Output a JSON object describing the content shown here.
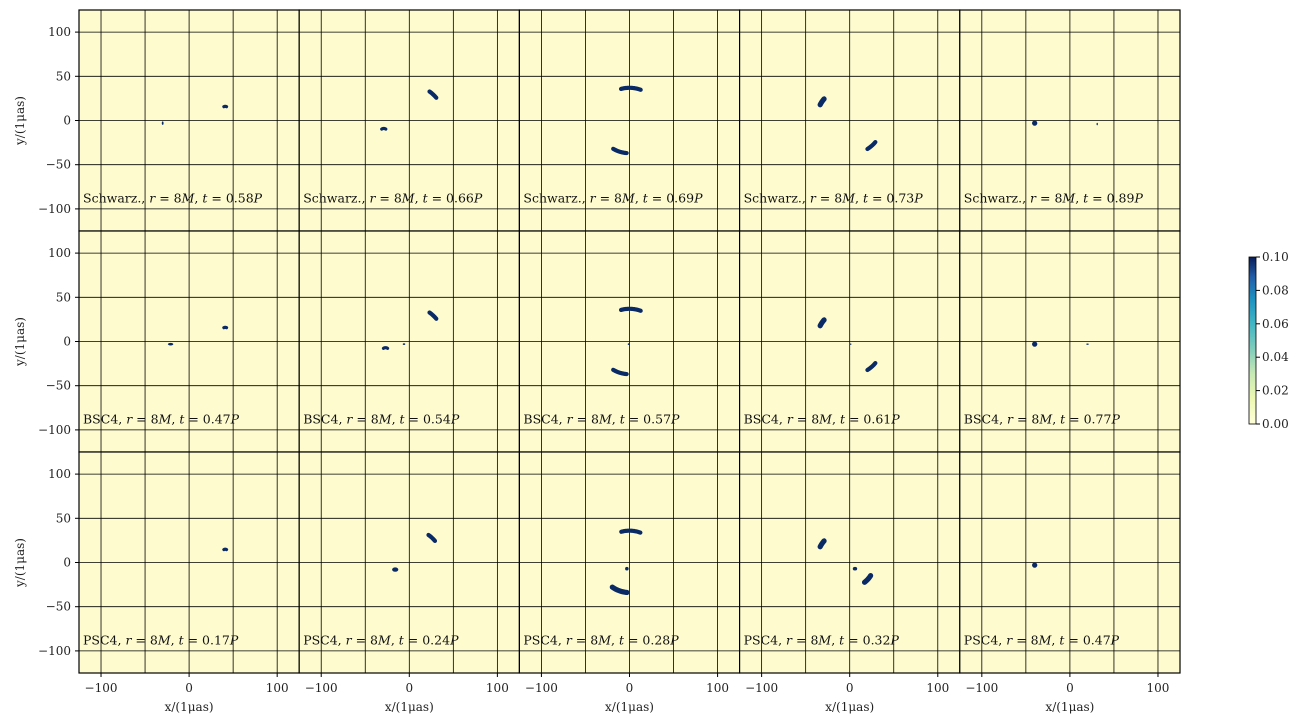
{
  "chart_data": {
    "type": "heatmap",
    "layout": {
      "rows": 3,
      "cols": 5
    },
    "xlabel": "x/(1μas)",
    "ylabel": "y/(1μas)",
    "xlim": [
      -125,
      125
    ],
    "ylim": [
      -125,
      125
    ],
    "xticks": [
      -100,
      0,
      100
    ],
    "yticks": [
      100,
      50,
      0,
      -50,
      -100
    ],
    "grid": true,
    "colormap": "YlGnBu",
    "background_color": "#fefccf",
    "spot_color": "#0a2a66",
    "colorbar": {
      "min": 0.0,
      "max": 0.1,
      "ticks": [
        "0.10",
        "0.08",
        "0.06",
        "0.04",
        "0.02",
        "0.00"
      ]
    },
    "panels": [
      {
        "row": 0,
        "col": 0,
        "model": "Schwarz.,",
        "r": "8M",
        "t": "0.58P",
        "features": [
          {
            "kind": "dot",
            "x": -30,
            "y": -3,
            "rx": 1,
            "ry": 2
          },
          {
            "kind": "arc",
            "cx": 41,
            "cy": 13,
            "R": 3,
            "a0": 60,
            "a1": 120,
            "w": 2
          }
        ]
      },
      {
        "row": 0,
        "col": 1,
        "model": "Schwarz.,",
        "r": "8M",
        "t": "0.66P",
        "features": [
          {
            "kind": "arc",
            "cx": -29,
            "cy": -13,
            "R": 4,
            "a0": 55,
            "a1": 125,
            "w": 2
          },
          {
            "kind": "arc",
            "cx": 0,
            "cy": 0,
            "R": 40,
            "a0": 40,
            "a1": 55,
            "w": 3
          }
        ]
      },
      {
        "row": 0,
        "col": 2,
        "model": "Schwarz.,",
        "r": "8M",
        "t": "0.69P",
        "features": [
          {
            "kind": "arc",
            "cx": 0,
            "cy": 0,
            "R": 37,
            "a0": 70,
            "a1": 105,
            "w": 3
          },
          {
            "kind": "arc",
            "cx": 0,
            "cy": 0,
            "R": 37,
            "a0": 240,
            "a1": 265,
            "w": 3
          }
        ]
      },
      {
        "row": 0,
        "col": 3,
        "model": "Schwarz.,",
        "r": "8M",
        "t": "0.73P",
        "features": [
          {
            "kind": "arc",
            "cx": 0,
            "cy": 0,
            "R": 38,
            "a0": 140,
            "a1": 152,
            "w": 4
          },
          {
            "kind": "arc",
            "cx": 0,
            "cy": 0,
            "R": 38,
            "a0": 302,
            "a1": 320,
            "w": 3
          }
        ]
      },
      {
        "row": 0,
        "col": 4,
        "model": "Schwarz.,",
        "r": "8M",
        "t": "0.89P",
        "features": [
          {
            "kind": "dot",
            "x": -40,
            "y": -3,
            "rx": 3,
            "ry": 3
          },
          {
            "kind": "dot",
            "x": 31,
            "y": -4,
            "rx": 0.8,
            "ry": 1.5
          }
        ]
      },
      {
        "row": 1,
        "col": 0,
        "model": "BSC4,",
        "r": "8M",
        "t": "0.47P",
        "features": [
          {
            "kind": "dot",
            "x": -21,
            "y": -3,
            "rx": 3,
            "ry": 1.5
          },
          {
            "kind": "arc",
            "cx": 41,
            "cy": 13,
            "R": 3,
            "a0": 60,
            "a1": 120,
            "w": 2
          }
        ]
      },
      {
        "row": 1,
        "col": 1,
        "model": "BSC4,",
        "r": "8M",
        "t": "0.54P",
        "features": [
          {
            "kind": "arc",
            "cx": -27,
            "cy": -11,
            "R": 4,
            "a0": 55,
            "a1": 125,
            "w": 2
          },
          {
            "kind": "dot",
            "x": -6,
            "y": -3,
            "rx": 1.5,
            "ry": 1
          },
          {
            "kind": "arc",
            "cx": 0,
            "cy": 0,
            "R": 40,
            "a0": 40,
            "a1": 55,
            "w": 3
          }
        ]
      },
      {
        "row": 1,
        "col": 2,
        "model": "BSC4,",
        "r": "8M",
        "t": "0.57P",
        "features": [
          {
            "kind": "arc",
            "cx": 0,
            "cy": 0,
            "R": 37,
            "a0": 70,
            "a1": 105,
            "w": 3
          },
          {
            "kind": "arc",
            "cx": 0,
            "cy": 0,
            "R": 37,
            "a0": 240,
            "a1": 265,
            "w": 3
          },
          {
            "kind": "dot",
            "x": -1,
            "y": -3,
            "rx": 1,
            "ry": 1
          }
        ]
      },
      {
        "row": 1,
        "col": 3,
        "model": "BSC4,",
        "r": "8M",
        "t": "0.61P",
        "features": [
          {
            "kind": "arc",
            "cx": 0,
            "cy": 0,
            "R": 38,
            "a0": 140,
            "a1": 152,
            "w": 4
          },
          {
            "kind": "arc",
            "cx": 0,
            "cy": 0,
            "R": 38,
            "a0": 302,
            "a1": 320,
            "w": 3
          },
          {
            "kind": "dot",
            "x": 1,
            "y": -3,
            "rx": 1,
            "ry": 0.8
          }
        ]
      },
      {
        "row": 1,
        "col": 4,
        "model": "BSC4,",
        "r": "8M",
        "t": "0.77P",
        "features": [
          {
            "kind": "dot",
            "x": -40,
            "y": -3,
            "rx": 3,
            "ry": 3
          },
          {
            "kind": "dot",
            "x": 20,
            "y": -3,
            "rx": 1.5,
            "ry": 0.8
          }
        ]
      },
      {
        "row": 2,
        "col": 0,
        "model": "PSC4,",
        "r": "8M",
        "t": "0.17P",
        "features": [
          {
            "kind": "arc",
            "cx": 41,
            "cy": 12,
            "R": 3,
            "a0": 60,
            "a1": 120,
            "w": 2
          }
        ]
      },
      {
        "row": 2,
        "col": 1,
        "model": "PSC4,",
        "r": "8M",
        "t": "0.24P",
        "features": [
          {
            "kind": "dot",
            "x": -16,
            "y": -8,
            "rx": 3.5,
            "ry": 2.5
          },
          {
            "kind": "arc",
            "cx": 0,
            "cy": 0,
            "R": 38,
            "a0": 40,
            "a1": 55,
            "w": 3
          }
        ]
      },
      {
        "row": 2,
        "col": 2,
        "model": "PSC4,",
        "r": "8M",
        "t": "0.28P",
        "features": [
          {
            "kind": "arc",
            "cx": 0,
            "cy": 0,
            "R": 36,
            "a0": 70,
            "a1": 105,
            "w": 3
          },
          {
            "kind": "arc",
            "cx": 0,
            "cy": 0,
            "R": 34,
            "a0": 235,
            "a1": 265,
            "w": 4
          },
          {
            "kind": "dot",
            "x": -3,
            "y": -7,
            "rx": 2,
            "ry": 2
          }
        ]
      },
      {
        "row": 2,
        "col": 3,
        "model": "PSC4,",
        "r": "8M",
        "t": "0.32P",
        "features": [
          {
            "kind": "arc",
            "cx": 0,
            "cy": 0,
            "R": 38,
            "a0": 140,
            "a1": 152,
            "w": 4
          },
          {
            "kind": "dot",
            "x": 6,
            "y": -7,
            "rx": 2.5,
            "ry": 2
          },
          {
            "kind": "arc",
            "cx": 0,
            "cy": 0,
            "R": 28,
            "a0": 307,
            "a1": 328,
            "w": 4
          }
        ]
      },
      {
        "row": 2,
        "col": 4,
        "model": "PSC4,",
        "r": "8M",
        "t": "0.47P",
        "features": [
          {
            "kind": "dot",
            "x": -40,
            "y": -3,
            "rx": 3,
            "ry": 3
          }
        ]
      }
    ]
  }
}
